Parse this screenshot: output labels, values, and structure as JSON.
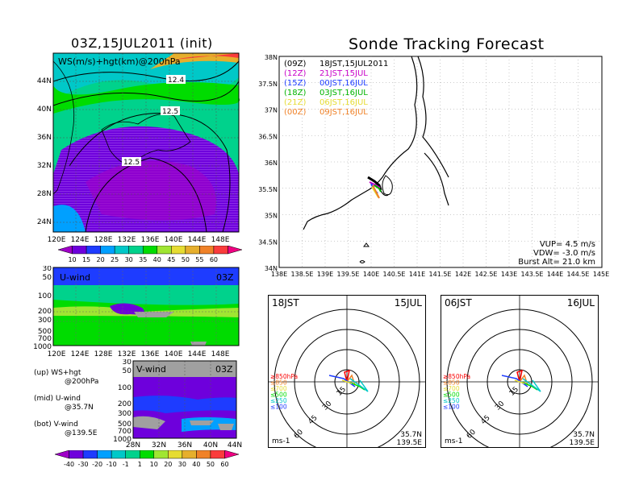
{
  "left_title": "03Z,15JUL2011 (init)",
  "right_title": "Sonde Tracking Forecast",
  "map_panel": {
    "label": "WS(m/s)+hgt(km)@200hPa",
    "lat_ticks": [
      "44N",
      "40N",
      "36N",
      "32N",
      "28N",
      "24N"
    ],
    "lon_ticks": [
      "120E",
      "124E",
      "128E",
      "132E",
      "136E",
      "140E",
      "144E",
      "148E"
    ],
    "contour_labels": [
      "12.4",
      "12.5",
      "12.5"
    ]
  },
  "ws_colorbar": {
    "labels": [
      "10",
      "15",
      "20",
      "25",
      "30",
      "35",
      "40",
      "45",
      "50",
      "55",
      "60"
    ],
    "colors": [
      "#a000c8",
      "#6e00dc",
      "#1e3cff",
      "#00a0ff",
      "#00c8c8",
      "#00d28c",
      "#00dc00",
      "#a0e632",
      "#e6dc32",
      "#e6af2d",
      "#f08228",
      "#fa3c3c",
      "#f00082"
    ]
  },
  "u_panel": {
    "label": "U-wind",
    "time": "03Z",
    "p_ticks": [
      "30",
      "50",
      "100",
      "200",
      "300",
      "500",
      "700",
      "1000"
    ],
    "lon_ticks": [
      "120E",
      "124E",
      "128E",
      "132E",
      "136E",
      "140E",
      "144E",
      "148E"
    ]
  },
  "v_panel": {
    "label": "V-wind",
    "time": "03Z",
    "p_ticks": [
      "30",
      "50",
      "100",
      "200",
      "300",
      "500",
      "700",
      "1000"
    ],
    "lat_ticks": [
      "28N",
      "32N",
      "36N",
      "40N",
      "44N"
    ]
  },
  "notes": [
    {
      "a": "(up) WS+hgt",
      "b": "@200hPa"
    },
    {
      "a": "(mid) U-wind",
      "b": "@35.7N"
    },
    {
      "a": "(bot) V-wind",
      "b": "@139.5E"
    }
  ],
  "wind_colorbar": {
    "labels": [
      "-40",
      "-30",
      "-20",
      "-10",
      "-1",
      "1",
      "10",
      "20",
      "30",
      "40",
      "50",
      "60"
    ],
    "colors": [
      "#a000c8",
      "#6e00dc",
      "#1e3cff",
      "#00a0ff",
      "#00c8c8",
      "#00d28c",
      "#00dc00",
      "#a0e632",
      "#e6dc32",
      "#e6af2d",
      "#f08228",
      "#fa3c3c",
      "#f00082"
    ]
  },
  "track_map": {
    "lat_ticks": [
      "38N",
      "37.5N",
      "37N",
      "36.5N",
      "36N",
      "35.5N",
      "35N",
      "34.5N",
      "34N"
    ],
    "lon_ticks": [
      "138E",
      "138.5E",
      "139E",
      "139.5E",
      "140E",
      "140.5E",
      "141E",
      "141.5E",
      "142E",
      "142.5E",
      "143E",
      "143.5E",
      "144E",
      "144.5E",
      "145E"
    ],
    "legend": [
      {
        "z": "(09Z)",
        "t": "18JST,15JUL2011",
        "color": "#000000"
      },
      {
        "z": "(12Z)",
        "t": "21JST,15JUL",
        "color": "#c800c8"
      },
      {
        "z": "(15Z)",
        "t": "00JST,16JUL",
        "color": "#1e3cff"
      },
      {
        "z": "(18Z)",
        "t": "03JST,16JUL",
        "color": "#00b400"
      },
      {
        "z": "(21Z)",
        "t": "06JST,16JUL",
        "color": "#e6dc32"
      },
      {
        "z": "(00Z)",
        "t": "09JST,16JUL",
        "color": "#f08228"
      }
    ],
    "vup": "VUP= 4.5 m/s",
    "vdw": "VDW= -3.0 m/s",
    "burst": "Burst Alt= 21.0 km"
  },
  "hodographs": [
    {
      "time": "18JST",
      "date": "15JUL",
      "lat": "35.7N",
      "lon": "139.5E",
      "unit": "ms-1",
      "rings": [
        "15",
        "30",
        "45",
        "60"
      ],
      "levels": [
        {
          "t": "≥850hPa",
          "c": "#fa0000"
        },
        {
          "t": "≤850",
          "c": "#f08228"
        },
        {
          "t": "≤700",
          "c": "#e6dc32"
        },
        {
          "t": "≤500",
          "c": "#00dc00"
        },
        {
          "t": "≤250",
          "c": "#00c8c8"
        },
        {
          "t": "≤100",
          "c": "#1e3cff"
        }
      ]
    },
    {
      "time": "06JST",
      "date": "16JUL",
      "lat": "35.7N",
      "lon": "139.5E",
      "unit": "ms-1",
      "rings": [
        "15",
        "30",
        "45",
        "60"
      ],
      "levels": [
        {
          "t": "≥850hPa",
          "c": "#fa0000"
        },
        {
          "t": "≤850",
          "c": "#f08228"
        },
        {
          "t": "≤700",
          "c": "#e6dc32"
        },
        {
          "t": "≤500",
          "c": "#00dc00"
        },
        {
          "t": "≤250",
          "c": "#00c8c8"
        },
        {
          "t": "≤100",
          "c": "#1e3cff"
        }
      ]
    }
  ]
}
